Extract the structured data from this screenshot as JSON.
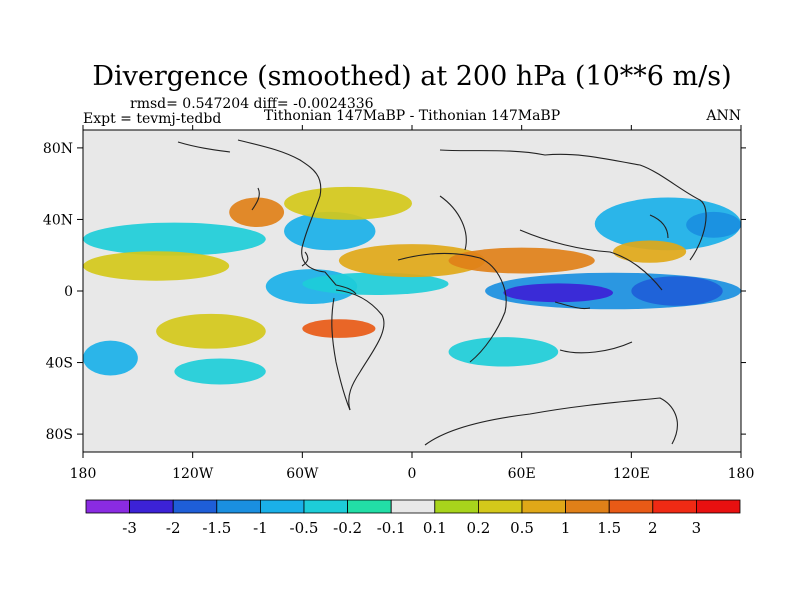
{
  "chart_data": {
    "type": "heatmap",
    "title": "Divergence (smoothed) at 200 hPa (10**6 m/s)",
    "stats": "rmsd= 0.547204 diff= -0.0024336",
    "left_label": "Expt = tevmj-tedbd",
    "center_label": "Tithonian 147MaBP - Tithonian 147MaBP",
    "right_label": "ANN",
    "x_ticks": [
      "180",
      "120W",
      "60W",
      "0",
      "60E",
      "120E",
      "180"
    ],
    "x_tick_values": [
      -180,
      -120,
      -60,
      0,
      60,
      120,
      180
    ],
    "y_ticks": [
      "80N",
      "40N",
      "0",
      "40S",
      "80S"
    ],
    "y_tick_values": [
      80,
      40,
      0,
      -40,
      -80
    ],
    "xlim": [
      -180,
      180
    ],
    "ylim": [
      -90,
      90
    ],
    "colorbar": {
      "labels": [
        "-3",
        "-2",
        "-1.5",
        "-1",
        "-0.5",
        "-0.2",
        "-0.1",
        "0.1",
        "0.2",
        "0.5",
        "1",
        "1.5",
        "2",
        "3"
      ],
      "colors": [
        "#8a2be2",
        "#3c22d6",
        "#1e5ed8",
        "#1a8fe0",
        "#1ab0e8",
        "#1dcdd8",
        "#22dea6",
        "#e8e8e8",
        "#a8d41c",
        "#d4c81a",
        "#e0a818",
        "#e08018",
        "#e85a16",
        "#f02a14",
        "#e81010"
      ]
    },
    "bands": [
      {
        "level": 5,
        "lon": [
          -180,
          -80
        ],
        "lat": [
          22,
          36
        ]
      },
      {
        "level": 4,
        "lon": [
          -70,
          -20
        ],
        "lat": [
          25,
          42
        ]
      },
      {
        "level": 4,
        "lon": [
          -80,
          -30
        ],
        "lat": [
          -5,
          10
        ]
      },
      {
        "level": 5,
        "lon": [
          -60,
          20
        ],
        "lat": [
          0,
          8
        ]
      },
      {
        "level": 3,
        "lon": [
          40,
          180
        ],
        "lat": [
          -8,
          8
        ]
      },
      {
        "level": 1,
        "lon": [
          50,
          110
        ],
        "lat": [
          -4,
          2
        ]
      },
      {
        "level": 2,
        "lon": [
          120,
          170
        ],
        "lat": [
          -6,
          6
        ]
      },
      {
        "level": 4,
        "lon": [
          100,
          180
        ],
        "lat": [
          25,
          50
        ]
      },
      {
        "level": 3,
        "lon": [
          150,
          180
        ],
        "lat": [
          32,
          42
        ]
      },
      {
        "level": 4,
        "lon": [
          -180,
          -150
        ],
        "lat": [
          -30,
          -45
        ]
      },
      {
        "level": 5,
        "lon": [
          -130,
          -80
        ],
        "lat": [
          -40,
          -50
        ]
      },
      {
        "level": 5,
        "lon": [
          20,
          80
        ],
        "lat": [
          -28,
          -40
        ]
      },
      {
        "level": 9,
        "lon": [
          -180,
          -100
        ],
        "lat": [
          8,
          20
        ]
      },
      {
        "level": 9,
        "lon": [
          -140,
          -80
        ],
        "lat": [
          -15,
          -30
        ]
      },
      {
        "level": 10,
        "lon": [
          -40,
          40
        ],
        "lat": [
          10,
          24
        ]
      },
      {
        "level": 11,
        "lon": [
          20,
          100
        ],
        "lat": [
          12,
          22
        ]
      },
      {
        "level": 12,
        "lon": [
          -60,
          -20
        ],
        "lat": [
          -18,
          -24
        ]
      },
      {
        "level": 11,
        "lon": [
          -100,
          -70
        ],
        "lat": [
          38,
          50
        ]
      },
      {
        "level": 9,
        "lon": [
          -70,
          0
        ],
        "lat": [
          42,
          56
        ]
      },
      {
        "level": 10,
        "lon": [
          110,
          150
        ],
        "lat": [
          18,
          26
        ]
      }
    ]
  }
}
